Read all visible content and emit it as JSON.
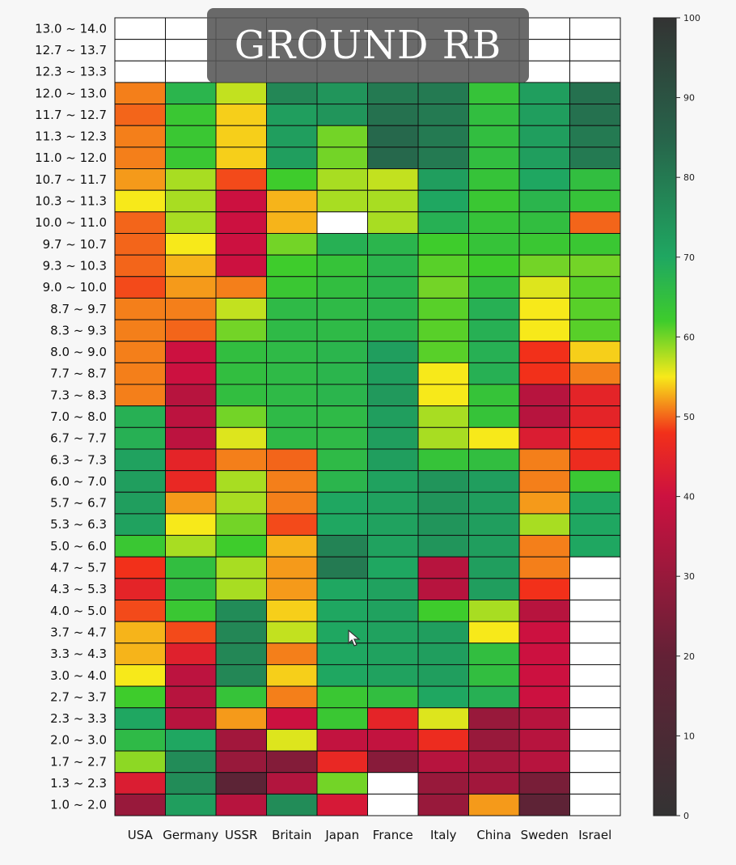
{
  "chart_data": {
    "type": "heatmap",
    "title": "GROUND RB",
    "columns": [
      "USA",
      "Germany",
      "USSR",
      "Britain",
      "Japan",
      "France",
      "Italy",
      "China",
      "Sweden",
      "Israel"
    ],
    "rows": [
      "13.0 ~ 14.0",
      "12.7 ~ 13.7",
      "12.3 ~ 13.3",
      "12.0 ~ 13.0",
      "11.7 ~ 12.7",
      "11.3 ~ 12.3",
      "11.0 ~ 12.0",
      "10.7 ~ 11.7",
      "10.3 ~ 11.3",
      "10.0 ~ 11.0",
      "9.7 ~ 10.7",
      "9.3 ~ 10.3",
      "9.0 ~ 10.0",
      "8.7 ~ 9.7",
      "8.3 ~ 9.3",
      "8.0 ~ 9.0",
      "7.7 ~ 8.7",
      "7.3 ~ 8.3",
      "7.0 ~ 8.0",
      "6.7 ~ 7.7",
      "6.3 ~ 7.3",
      "6.0 ~ 7.0",
      "5.7 ~ 6.7",
      "5.3 ~ 6.3",
      "5.0 ~ 6.0",
      "4.7 ~ 5.7",
      "4.3 ~ 5.3",
      "4.0 ~ 5.0",
      "3.7 ~ 4.7",
      "3.3 ~ 4.3",
      "3.0 ~ 4.0",
      "2.7 ~ 3.7",
      "2.3 ~ 3.3",
      "2.0 ~ 3.0",
      "1.7 ~ 2.7",
      "1.3 ~ 2.3",
      "1.0 ~ 2.0"
    ],
    "values": [
      [
        null,
        null,
        null,
        null,
        null,
        null,
        null,
        null,
        null,
        null
      ],
      [
        null,
        null,
        null,
        null,
        null,
        null,
        null,
        null,
        null,
        null
      ],
      [
        null,
        null,
        null,
        null,
        null,
        null,
        null,
        null,
        null,
        null
      ],
      [
        51,
        67,
        57,
        77,
        74,
        80,
        80,
        64,
        72,
        82
      ],
      [
        50,
        63,
        54,
        72,
        74,
        82,
        80,
        65,
        72,
        82
      ],
      [
        51,
        63,
        54,
        72,
        60,
        84,
        80,
        65,
        72,
        80
      ],
      [
        51,
        63,
        54,
        72,
        60,
        84,
        80,
        65,
        72,
        80
      ],
      [
        52,
        58,
        49,
        62,
        58,
        57,
        72,
        64,
        70,
        65
      ],
      [
        55,
        58,
        40,
        53,
        58,
        58,
        70,
        63,
        67,
        64
      ],
      [
        50,
        58,
        40,
        53,
        null,
        58,
        68,
        64,
        65,
        50
      ],
      [
        50,
        55,
        40,
        60,
        68,
        67,
        62,
        64,
        63,
        63
      ],
      [
        50,
        53,
        40,
        62,
        64,
        67,
        61,
        62,
        60,
        60
      ],
      [
        49,
        52,
        51,
        63,
        65,
        67,
        60,
        65,
        56,
        61
      ],
      [
        51,
        51,
        57,
        66,
        66,
        67,
        61,
        68,
        55,
        61
      ],
      [
        51,
        50,
        60,
        66,
        66,
        67,
        61,
        68,
        55,
        61
      ],
      [
        51,
        40,
        65,
        66,
        67,
        72,
        61,
        68,
        48,
        54
      ],
      [
        51,
        40,
        65,
        66,
        67,
        72,
        55,
        68,
        48,
        51
      ],
      [
        51,
        36,
        65,
        66,
        67,
        73,
        55,
        64,
        36,
        45
      ],
      [
        68,
        37,
        60,
        66,
        66,
        72,
        58,
        64,
        36,
        45
      ],
      [
        68,
        37,
        56,
        66,
        66,
        72,
        58,
        55,
        43,
        48
      ],
      [
        71,
        45,
        51,
        50,
        66,
        72,
        64,
        65,
        51,
        47
      ],
      [
        72,
        46,
        58,
        51,
        67,
        71,
        74,
        72,
        51,
        63
      ],
      [
        72,
        52,
        58,
        51,
        70,
        71,
        74,
        72,
        52,
        70
      ],
      [
        71,
        55,
        60,
        49,
        70,
        71,
        74,
        72,
        58,
        70
      ],
      [
        63,
        58,
        62,
        53,
        78,
        71,
        74,
        72,
        51,
        70
      ],
      [
        48,
        65,
        58,
        52,
        80,
        70,
        36,
        72,
        51,
        null
      ],
      [
        45,
        65,
        58,
        52,
        70,
        71,
        36,
        72,
        48,
        null
      ],
      [
        49,
        63,
        76,
        54,
        70,
        71,
        62,
        58,
        36,
        null
      ],
      [
        53,
        49,
        77,
        57,
        70,
        71,
        72,
        55,
        40,
        null
      ],
      [
        53,
        44,
        77,
        51,
        70,
        71,
        72,
        65,
        40,
        null
      ],
      [
        55,
        37,
        77,
        54,
        70,
        71,
        72,
        65,
        40,
        null
      ],
      [
        62,
        36,
        64,
        51,
        63,
        65,
        70,
        68,
        40,
        null
      ],
      [
        70,
        36,
        52,
        40,
        63,
        45,
        56,
        30,
        36,
        null
      ],
      [
        66,
        70,
        32,
        56,
        38,
        38,
        47,
        30,
        36,
        null
      ],
      [
        59,
        76,
        30,
        26,
        46,
        27,
        36,
        33,
        36,
        null
      ],
      [
        43,
        76,
        17,
        35,
        60,
        null,
        30,
        32,
        24,
        null
      ],
      [
        30,
        72,
        36,
        76,
        42,
        null,
        30,
        52,
        18,
        null
      ]
    ],
    "colorbar": {
      "min": 0,
      "max": 100,
      "ticks": [
        0,
        10,
        20,
        30,
        40,
        50,
        60,
        70,
        80,
        90,
        100
      ]
    },
    "colormap": "diverging dark-red/red/yellow/green/dark-green",
    "grid": true,
    "legend": "colorbar at right"
  }
}
